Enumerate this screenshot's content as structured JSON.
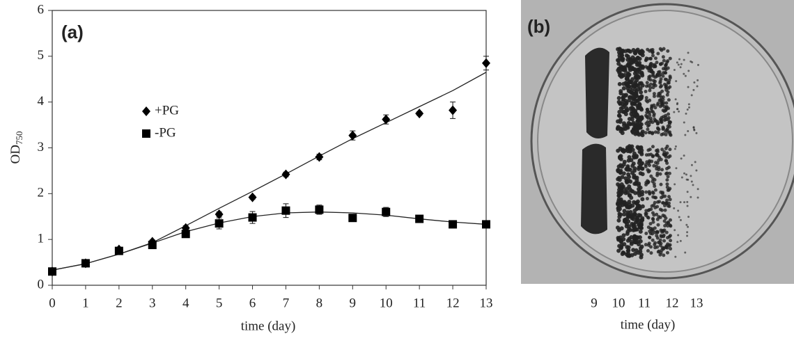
{
  "chart_data": {
    "type": "line",
    "annotation": "(a)",
    "x_label": "time (day)",
    "y_label": "OD",
    "y_label_subscript": "750",
    "x": [
      0,
      1,
      2,
      3,
      4,
      5,
      6,
      7,
      8,
      9,
      10,
      11,
      12,
      13
    ],
    "xlim": [
      0,
      13
    ],
    "xticks": [
      0,
      1,
      2,
      3,
      4,
      5,
      6,
      7,
      8,
      9,
      10,
      11,
      12,
      13
    ],
    "ylim": [
      0,
      6
    ],
    "yticks": [
      0,
      1,
      2,
      3,
      4,
      5,
      6
    ],
    "series": [
      {
        "name": "+PG",
        "marker": "diamond",
        "color": "#000000",
        "values": [
          0.3,
          0.48,
          0.78,
          0.95,
          1.25,
          1.55,
          1.92,
          2.42,
          2.8,
          3.27,
          3.62,
          3.75,
          3.82,
          4.85
        ],
        "errors": [
          0.03,
          0.04,
          0.05,
          0.04,
          0.05,
          0.05,
          0.04,
          0.05,
          0.06,
          0.1,
          0.1,
          0.04,
          0.18,
          0.15
        ],
        "trend": [
          0.33,
          0.47,
          0.68,
          0.93,
          1.3,
          1.68,
          2.05,
          2.43,
          2.82,
          3.2,
          3.55,
          3.9,
          4.25,
          4.65
        ]
      },
      {
        "name": "-PG",
        "marker": "square",
        "color": "#000000",
        "values": [
          0.3,
          0.48,
          0.75,
          0.88,
          1.12,
          1.35,
          1.48,
          1.63,
          1.65,
          1.47,
          1.6,
          1.45,
          1.33,
          1.33
        ],
        "errors": [
          0.03,
          0.04,
          0.05,
          0.05,
          0.06,
          0.12,
          0.13,
          0.15,
          0.1,
          0.07,
          0.1,
          0.07,
          0.08,
          0.06
        ],
        "trend": [
          0.33,
          0.47,
          0.68,
          0.92,
          1.17,
          1.36,
          1.5,
          1.58,
          1.6,
          1.58,
          1.53,
          1.45,
          1.38,
          1.33
        ]
      }
    ]
  },
  "panel_b": {
    "annotation": "(b)",
    "labels": [
      "9",
      "10",
      "11",
      "12",
      "13"
    ],
    "x_label": "time (day)"
  }
}
